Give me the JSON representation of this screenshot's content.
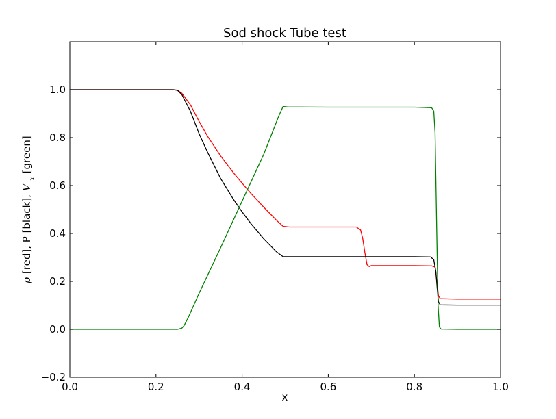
{
  "chart_data": {
    "type": "line",
    "title": "Sod shock Tube test",
    "xlabel": "x",
    "ylabel_parts": [
      "ρ",
      " [red], P [black], ",
      "V",
      "x",
      " [green]"
    ],
    "xlim": [
      0.0,
      1.0
    ],
    "ylim": [
      -0.2,
      1.2
    ],
    "grid": false,
    "x_ticks": [
      {
        "value": 0.0,
        "label": "0.0"
      },
      {
        "value": 0.2,
        "label": "0.2"
      },
      {
        "value": 0.4,
        "label": "0.4"
      },
      {
        "value": 0.6,
        "label": "0.6"
      },
      {
        "value": 0.8,
        "label": "0.8"
      },
      {
        "value": 1.0,
        "label": "1.0"
      }
    ],
    "y_ticks": [
      {
        "value": -0.2,
        "label": "−0.2"
      },
      {
        "value": 0.0,
        "label": "0.0"
      },
      {
        "value": 0.2,
        "label": "0.2"
      },
      {
        "value": 0.4,
        "label": "0.4"
      },
      {
        "value": 0.6,
        "label": "0.6"
      },
      {
        "value": 0.8,
        "label": "0.8"
      },
      {
        "value": 1.0,
        "label": "1.0"
      }
    ],
    "series": [
      {
        "color": "#ff0000",
        "x": [
          0.0,
          0.24,
          0.25,
          0.26,
          0.28,
          0.3,
          0.32,
          0.35,
          0.38,
          0.4,
          0.42,
          0.45,
          0.48,
          0.495,
          0.51,
          0.6,
          0.665,
          0.675,
          0.68,
          0.685,
          0.69,
          0.695,
          0.7,
          0.75,
          0.8,
          0.84,
          0.848,
          0.852,
          0.856,
          0.86,
          0.9,
          1.0
        ],
        "y": [
          1.0,
          1.0,
          0.998,
          0.985,
          0.937,
          0.868,
          0.805,
          0.724,
          0.653,
          0.61,
          0.568,
          0.51,
          0.455,
          0.43,
          0.427,
          0.427,
          0.427,
          0.415,
          0.38,
          0.32,
          0.27,
          0.262,
          0.266,
          0.266,
          0.266,
          0.265,
          0.26,
          0.2,
          0.14,
          0.128,
          0.126,
          0.126
        ]
      },
      {
        "color": "#000000",
        "x": [
          0.0,
          0.24,
          0.25,
          0.26,
          0.28,
          0.3,
          0.32,
          0.35,
          0.38,
          0.4,
          0.42,
          0.45,
          0.48,
          0.495,
          0.505,
          0.6,
          0.7,
          0.8,
          0.838,
          0.845,
          0.85,
          0.853,
          0.856,
          0.86,
          0.9,
          1.0
        ],
        "y": [
          1.0,
          1.0,
          0.997,
          0.98,
          0.91,
          0.817,
          0.738,
          0.63,
          0.542,
          0.49,
          0.442,
          0.378,
          0.323,
          0.303,
          0.303,
          0.303,
          0.303,
          0.303,
          0.302,
          0.29,
          0.24,
          0.17,
          0.115,
          0.102,
          0.101,
          0.101
        ]
      },
      {
        "color": "#008000",
        "x": [
          0.0,
          0.25,
          0.26,
          0.265,
          0.275,
          0.3,
          0.35,
          0.4,
          0.45,
          0.485,
          0.495,
          0.505,
          0.6,
          0.7,
          0.8,
          0.84,
          0.845,
          0.848,
          0.852,
          0.855,
          0.858,
          0.862,
          0.9,
          1.0
        ],
        "y": [
          0.0,
          0.0,
          0.005,
          0.015,
          0.05,
          0.15,
          0.34,
          0.535,
          0.73,
          0.89,
          0.93,
          0.928,
          0.927,
          0.927,
          0.927,
          0.925,
          0.91,
          0.82,
          0.4,
          0.1,
          0.01,
          0.001,
          0.0,
          0.0
        ]
      }
    ]
  }
}
